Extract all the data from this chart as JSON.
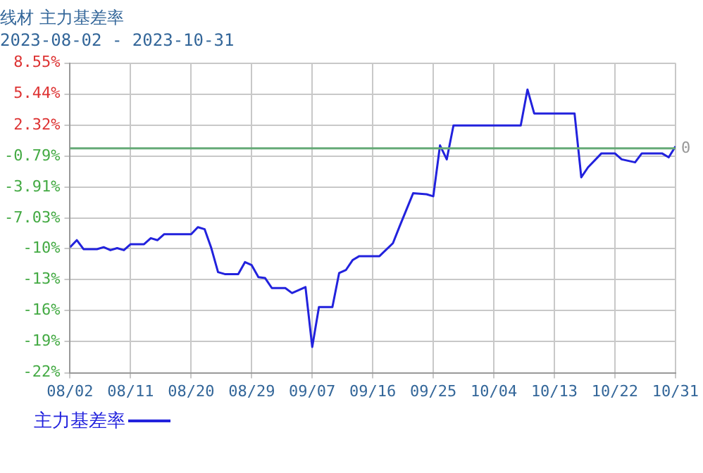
{
  "chart_data": {
    "type": "line",
    "title": "线材 主力基差率",
    "subtitle": "2023-08-02 - 2023-10-31",
    "x": [
      "2023-08-02",
      "2023-08-03",
      "2023-08-04",
      "2023-08-06",
      "2023-08-07",
      "2023-08-08",
      "2023-08-09",
      "2023-08-10",
      "2023-08-11",
      "2023-08-13",
      "2023-08-14",
      "2023-08-15",
      "2023-08-16",
      "2023-08-20",
      "2023-08-21",
      "2023-08-22",
      "2023-08-23",
      "2023-08-24",
      "2023-08-25",
      "2023-08-27",
      "2023-08-28",
      "2023-08-29",
      "2023-08-30",
      "2023-08-31",
      "2023-09-01",
      "2023-09-03",
      "2023-09-04",
      "2023-09-06",
      "2023-09-07",
      "2023-09-08",
      "2023-09-10",
      "2023-09-11",
      "2023-09-12",
      "2023-09-13",
      "2023-09-14",
      "2023-09-17",
      "2023-09-19",
      "2023-09-20",
      "2023-09-22",
      "2023-09-24",
      "2023-09-25",
      "2023-09-26",
      "2023-09-27",
      "2023-09-28",
      "2023-10-08",
      "2023-10-09",
      "2023-10-10",
      "2023-10-16",
      "2023-10-17",
      "2023-10-18",
      "2023-10-20",
      "2023-10-22",
      "2023-10-23",
      "2023-10-25",
      "2023-10-26",
      "2023-10-29",
      "2023-10-30",
      "2023-10-31"
    ],
    "series": [
      {
        "name": "主力基差率",
        "color": "#2222dd",
        "values": [
          -9.9,
          -9.2,
          -10.1,
          -10.1,
          -9.9,
          -10.2,
          -10.0,
          -10.2,
          -9.6,
          -9.6,
          -9.0,
          -9.2,
          -8.6,
          -8.6,
          -7.9,
          -8.1,
          -10.0,
          -12.4,
          -12.6,
          -12.6,
          -11.4,
          -11.7,
          -12.9,
          -13.0,
          -14.0,
          -14.0,
          -14.5,
          -13.9,
          -19.9,
          -15.9,
          -15.9,
          -12.5,
          -12.2,
          -11.2,
          -10.8,
          -10.8,
          -9.5,
          -7.8,
          -4.5,
          -4.6,
          -4.8,
          0.3,
          -1.1,
          2.3,
          2.3,
          5.9,
          3.5,
          3.5,
          -2.9,
          -1.9,
          -0.5,
          -0.5,
          -1.1,
          -1.4,
          -0.5,
          -0.5,
          -0.9,
          0.2
        ]
      }
    ],
    "xlim": [
      "2023-08-02",
      "2023-10-31"
    ],
    "xticks": [
      {
        "value": "2023-08-02",
        "label": "08/02"
      },
      {
        "value": "2023-08-11",
        "label": "08/11"
      },
      {
        "value": "2023-08-20",
        "label": "08/20"
      },
      {
        "value": "2023-08-29",
        "label": "08/29"
      },
      {
        "value": "2023-09-07",
        "label": "09/07"
      },
      {
        "value": "2023-09-16",
        "label": "09/16"
      },
      {
        "value": "2023-09-25",
        "label": "09/25"
      },
      {
        "value": "2023-10-04",
        "label": "10/04"
      },
      {
        "value": "2023-10-13",
        "label": "10/13"
      },
      {
        "value": "2023-10-22",
        "label": "10/22"
      },
      {
        "value": "2023-10-31",
        "label": "10/31"
      }
    ],
    "ylim": [
      -22.49,
      8.55
    ],
    "yticks": [
      {
        "value": -22.49,
        "label": "-22%"
      },
      {
        "value": -19.37,
        "label": "-19%"
      },
      {
        "value": -16.26,
        "label": "-16%"
      },
      {
        "value": -13.15,
        "label": "-13%"
      },
      {
        "value": -10.04,
        "label": "-10%"
      },
      {
        "value": -7.03,
        "label": "-7.03%"
      },
      {
        "value": -3.91,
        "label": "-3.91%"
      },
      {
        "value": -0.79,
        "label": "-0.79%"
      },
      {
        "value": 2.32,
        "label": "2.32%"
      },
      {
        "value": 5.44,
        "label": "5.44%"
      },
      {
        "value": 8.55,
        "label": "8.55%"
      }
    ],
    "ref_lines": [
      {
        "axis": "y",
        "value": 0,
        "label": "0",
        "color": "#66aa77"
      }
    ],
    "grid": true,
    "legend": "bottom left",
    "marker": "none",
    "line_style": "solid"
  }
}
